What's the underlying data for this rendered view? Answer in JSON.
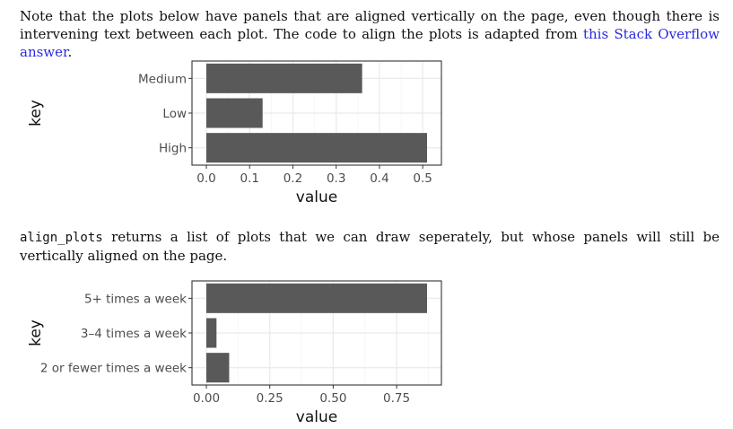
{
  "paragraphs": {
    "p1": {
      "text": "Note that the plots below have panels that are aligned vertically on the page, even though there is intervening text between each plot. The code to align the plots is adapted from",
      "link": "this Stack Overflow answer",
      "end": "."
    },
    "p2": {
      "code": "align_plots",
      "text": " returns a list of plots that we can draw seperately, but whose panels will still be vertically aligned on the page."
    }
  },
  "colors": {
    "bar": "#595959",
    "grid_major": "#ebebeb",
    "grid_minor": "#f5f5f5",
    "panel_border": "#333333"
  },
  "chart_data": [
    {
      "type": "bar",
      "orientation": "horizontal",
      "categories": [
        "Medium",
        "Low",
        "High"
      ],
      "values": [
        0.36,
        0.13,
        0.51
      ],
      "xlabel": "value",
      "ylabel": "key",
      "xlim": [
        0,
        0.51
      ],
      "xticks": [
        0.0,
        0.1,
        0.2,
        0.3,
        0.4,
        0.5
      ],
      "xtick_labels": [
        "0.0",
        "0.1",
        "0.2",
        "0.3",
        "0.4",
        "0.5"
      ],
      "grid": true
    },
    {
      "type": "bar",
      "orientation": "horizontal",
      "categories": [
        "5+ times a week",
        "3–4 times a week",
        "2 or fewer times a week"
      ],
      "values": [
        0.87,
        0.04,
        0.09
      ],
      "xlabel": "value",
      "ylabel": "key",
      "xlim": [
        0,
        0.87
      ],
      "xticks": [
        0.0,
        0.25,
        0.5,
        0.75
      ],
      "xtick_labels": [
        "0.00",
        "0.25",
        "0.50",
        "0.75"
      ],
      "grid": true
    }
  ]
}
